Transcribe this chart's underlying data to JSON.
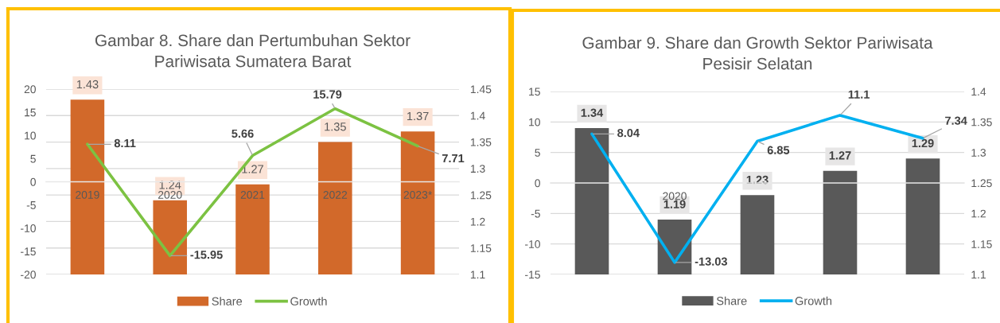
{
  "chart_data": [
    {
      "type": "bar",
      "title": "Gambar 8. Share dan Pertumbuhan Sektor\nPariwisata Sumatera Barat",
      "categories": [
        "2019",
        "2020",
        "2021",
        "2022",
        "2023*"
      ],
      "series": [
        {
          "name": "Share",
          "axis": "y2",
          "color": "#d2692a",
          "values": [
            1.43,
            1.24,
            1.27,
            1.35,
            1.37
          ]
        },
        {
          "name": "Growth",
          "type": "line",
          "axis": "y",
          "color": "#7cc242",
          "values": [
            8.11,
            -15.95,
            5.66,
            15.79,
            7.71
          ]
        }
      ],
      "ylim": [
        -20,
        20
      ],
      "yticks": [
        -20,
        -15,
        -10,
        -5,
        0,
        5,
        10,
        15,
        20
      ],
      "y2lim": [
        1.1,
        1.45
      ],
      "y2ticks": [
        1.1,
        1.15,
        1.2,
        1.25,
        1.3,
        1.35,
        1.4,
        1.45
      ],
      "data_labels": true,
      "grid": "y",
      "legend": "bottom"
    },
    {
      "type": "bar",
      "title": "Gambar 9. Share dan Growth Sektor Pariwisata\nPesisir Selatan",
      "categories": [
        null,
        "2020",
        null,
        null,
        null
      ],
      "series": [
        {
          "name": "Share",
          "axis": "y2",
          "color": "#595959",
          "values": [
            1.34,
            1.19,
            1.23,
            1.27,
            1.29
          ]
        },
        {
          "name": "Growth",
          "type": "line",
          "axis": "y",
          "color": "#00b0f0",
          "values": [
            8.04,
            -13.03,
            6.85,
            11.1,
            7.34
          ]
        }
      ],
      "ylim": [
        -15,
        15
      ],
      "yticks": [
        -15,
        -10,
        -5,
        0,
        5,
        10,
        15
      ],
      "y2lim": [
        1.1,
        1.4
      ],
      "y2ticks": [
        1.1,
        1.15,
        1.2,
        1.25,
        1.3,
        1.35,
        1.4
      ],
      "data_labels": true,
      "grid": "y",
      "legend": "bottom"
    }
  ]
}
